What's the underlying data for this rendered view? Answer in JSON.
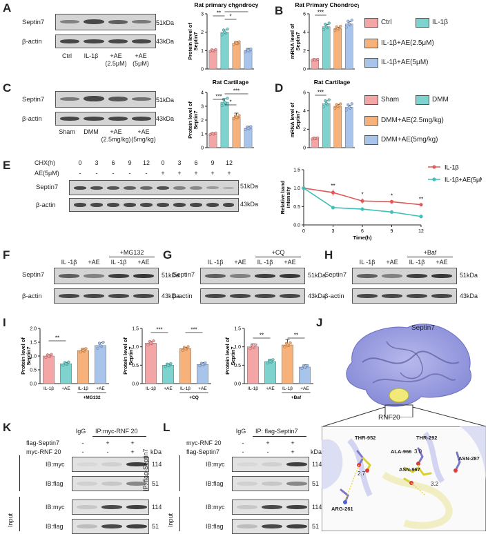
{
  "panels": {
    "A": {
      "letter": "A",
      "rows": [
        "Septin7",
        "β-actin"
      ],
      "kda": [
        "51kDa",
        "43kDa"
      ],
      "lanes": [
        "Ctrl",
        "IL-1β",
        "+AE (2.5μM)",
        "+AE (5μM)"
      ],
      "chart_title": "Rat primary chondrocytes",
      "ylabel": "Protein level of Septin7",
      "sig": [
        "**",
        "*",
        "**"
      ]
    },
    "B": {
      "letter": "B",
      "chart_title": "Rat Primary Chondrocytes",
      "ylabel": "mRNA level of Septin7",
      "sig": [
        "***"
      ],
      "legend": [
        "Ctrl",
        "IL-1β",
        "IL-1β+AE(2.5μM)",
        "IL-1β+AE(5μM)"
      ]
    },
    "C": {
      "letter": "C",
      "rows": [
        "Septin7",
        "β-actin"
      ],
      "kda": [
        "51kDa",
        "43kDa"
      ],
      "lanes": [
        "Sham",
        "DMM",
        "+AE (2.5mg/kg)",
        "+AE (5mg/kg)"
      ],
      "chart_title": "Rat Cartilage",
      "ylabel": "Protein level of Septin7",
      "sig": [
        "***",
        "*",
        "***"
      ]
    },
    "D": {
      "letter": "D",
      "chart_title": "Rat Cartilage",
      "ylabel": "mRNA level of Septin7",
      "sig": [
        "***"
      ],
      "legend": [
        "Sham",
        "DMM",
        "DMM+AE(2.5mg/kg)",
        "DMM+AE(5mg/kg)"
      ]
    },
    "E": {
      "letter": "E",
      "chx_label": "CHX(h)",
      "chx_values": [
        "0",
        "3",
        "6",
        "9",
        "12",
        "0",
        "3",
        "6",
        "9",
        "12"
      ],
      "ae_label": "AE(5μM)",
      "ae_values": [
        "-",
        "-",
        "-",
        "-",
        "-",
        "+",
        "+",
        "+",
        "+",
        "+"
      ],
      "rows": [
        "Septin7",
        "β-actin"
      ],
      "kda": [
        "51kDa",
        "43kDa"
      ],
      "ylabel": "Relative band intensity",
      "xlabel": "Time(h)",
      "legend": [
        "IL-1β",
        "IL-1β+AE(5μM)"
      ],
      "sig": [
        "**",
        "*",
        "*",
        "**"
      ]
    },
    "F": {
      "letter": "F",
      "header_top": "+MG132",
      "lanes": [
        "IL -1β",
        "+AE",
        "IL -1β",
        "+AE"
      ],
      "rows": [
        "Septin7",
        "β-actin"
      ],
      "kda": [
        "51kDa",
        "43kDa"
      ]
    },
    "G": {
      "letter": "G",
      "header_top": "+CQ",
      "lanes": [
        "IL -1β",
        "+AE",
        "IL -1β",
        "+AE"
      ],
      "rows": [
        "Septin7",
        "β-actin"
      ],
      "kda": [
        "51kDa",
        "43kDa"
      ]
    },
    "H": {
      "letter": "H",
      "header_top": "+Baf",
      "lanes": [
        "IL -1β",
        "+AE",
        "IL -1β",
        "+AE"
      ],
      "rows": [
        "Septin7",
        "β-actin"
      ],
      "kda": [
        "51kDa",
        "43kDa"
      ]
    },
    "I": {
      "letter": "I",
      "ylabel": "Protein level of Septin7",
      "charts": [
        {
          "lanes": [
            "IL-1β",
            "+AE",
            "IL-1β",
            "+AE"
          ],
          "group": "+MG132",
          "sig": [
            "**"
          ]
        },
        {
          "lanes": [
            "IL-1β",
            "+AE",
            "IL-1β",
            "+AE"
          ],
          "group": "+CQ",
          "sig": [
            "***",
            "***"
          ]
        },
        {
          "lanes": [
            "IL-1β",
            "+AE",
            "IL-1β",
            "+AE"
          ],
          "group": "+Baf",
          "sig": [
            "**",
            "**"
          ]
        }
      ]
    },
    "J": {
      "letter": "J",
      "protein_top": "Septin7",
      "protein_bottom": "RNF20",
      "residues": [
        "THR-952",
        "THR-292",
        "ALA-966",
        "ASN-287",
        "ASN-967",
        "ARG-261"
      ],
      "distances": [
        "2.7",
        "3.0",
        "3.2"
      ]
    },
    "K": {
      "letter": "K",
      "side_ip": "IP: myc-RNF 20",
      "side_input": "Input",
      "igg": "IgG",
      "ip_header": "IP:myc-RNF 20",
      "row1_label": "flag-Septin7",
      "row1_values": [
        "-",
        "+",
        "+"
      ],
      "row2_label": "myc-RNF 20",
      "row2_values": [
        "-",
        "-",
        "+"
      ],
      "kda_header": "kDa",
      "blots": [
        "IB:myc",
        "IB:flag",
        "IB:myc",
        "IB:flag"
      ],
      "kda": [
        "114",
        "51",
        "114",
        "51"
      ]
    },
    "L": {
      "letter": "L",
      "side_ip": "IP: flag-Septin7",
      "side_input": "Input",
      "igg": "IgG",
      "ip_header": "IP:  flag-Septin7",
      "row1_label": "myc-RNF 20",
      "row1_values": [
        "-",
        "+",
        "+"
      ],
      "row2_label": "flag-Septin7",
      "row2_values": [
        "-",
        "-",
        "+"
      ],
      "kda_header": "kDa",
      "blots": [
        "IB:myc",
        "IB:flag",
        "IB:myc",
        "IB:flag"
      ],
      "kda": [
        "114",
        "51",
        "114",
        "51"
      ]
    }
  },
  "colors": {
    "ctrl": "#f4a6a6",
    "il1b": "#7fd3cf",
    "ae25": "#f6b27a",
    "ae5": "#a9c4ea",
    "line_il1b": "#e05a5a",
    "line_ae": "#3cc0b8",
    "purple_protein": "#9b9fe0",
    "yellow_protein": "#f1ea7a"
  },
  "chart_data": [
    {
      "type": "bar",
      "panel": "A",
      "title": "Rat primary chondrocytes",
      "categories": [
        "Ctrl",
        "IL-1β",
        "IL-1β+AE(2.5μM)",
        "IL-1β+AE(5μM)"
      ],
      "values": [
        1.0,
        2.0,
        1.4,
        1.0
      ],
      "errors": [
        0.05,
        0.12,
        0.08,
        0.12
      ],
      "ylabel": "Protein level of Septin7",
      "ylim": [
        0,
        3
      ],
      "yticks": [
        "0",
        "1",
        "2",
        "3"
      ]
    },
    {
      "type": "bar",
      "panel": "B",
      "title": "Rat Primary Chondrocytes",
      "categories": [
        "Ctrl",
        "IL-1β",
        "IL-1β+AE(2.5μM)",
        "IL-1β+AE(5μM)"
      ],
      "values": [
        1.0,
        4.6,
        4.4,
        4.9
      ],
      "errors": [
        0.1,
        0.25,
        0.15,
        0.25
      ],
      "ylabel": "mRNA level of Septin7",
      "ylim": [
        0,
        6
      ],
      "yticks": [
        "0",
        "2",
        "4",
        "6"
      ]
    },
    {
      "type": "bar",
      "panel": "C",
      "title": "Rat Cartilage",
      "categories": [
        "Sham",
        "DMM",
        "DMM+AE(2.5mg/kg)",
        "DMM+AE(5mg/kg)"
      ],
      "values": [
        1.0,
        3.3,
        2.2,
        1.4
      ],
      "errors": [
        0.08,
        0.25,
        0.3,
        0.15
      ],
      "ylabel": "Protein level of Septin7",
      "ylim": [
        0,
        4
      ],
      "yticks": [
        "0",
        "1",
        "2",
        "3",
        "4"
      ]
    },
    {
      "type": "bar",
      "panel": "D",
      "title": "Rat Cartilage",
      "categories": [
        "Sham",
        "DMM",
        "DMM+AE(2.5mg/kg)",
        "DMM+AE(5mg/kg)"
      ],
      "values": [
        1.0,
        4.8,
        4.5,
        4.4
      ],
      "errors": [
        0.12,
        0.3,
        0.2,
        0.2
      ],
      "ylabel": "mRNA level of Septin7",
      "ylim": [
        0,
        6
      ],
      "yticks": [
        "0",
        "2",
        "4",
        "6"
      ]
    },
    {
      "type": "line",
      "panel": "E",
      "x": [
        0,
        3,
        6,
        9,
        12
      ],
      "series": [
        {
          "name": "IL-1β",
          "values": [
            1.0,
            0.88,
            0.65,
            0.63,
            0.55
          ],
          "errors": [
            0.04,
            0.08,
            0.07,
            0.05,
            0.04
          ]
        },
        {
          "name": "IL-1β+AE(5μM)",
          "values": [
            1.0,
            0.47,
            0.43,
            0.35,
            0.23
          ],
          "errors": [
            0.04,
            0.03,
            0.05,
            0.03,
            0.04
          ]
        }
      ],
      "xlabel": "Time(h)",
      "ylabel": "Relative band intensity",
      "xlim": [
        0,
        12
      ],
      "ylim": [
        0,
        1.5
      ],
      "xticks": [
        "0",
        "3",
        "6",
        "9",
        "12"
      ],
      "yticks": [
        "0.0",
        "0.5",
        "1.0",
        "1.5"
      ]
    },
    {
      "type": "bar",
      "panel": "I1",
      "categories": [
        "IL-1β",
        "+AE",
        "IL-1β",
        "+AE"
      ],
      "group": "+MG132",
      "values": [
        1.0,
        0.72,
        1.2,
        1.38
      ],
      "errors": [
        0.05,
        0.05,
        0.08,
        0.1
      ],
      "ylabel": "Protein level of Septin7",
      "ylim": [
        0,
        2.0
      ],
      "yticks": [
        "0.0",
        "0.5",
        "1.0",
        "1.5",
        "2.0"
      ]
    },
    {
      "type": "bar",
      "panel": "I2",
      "categories": [
        "IL-1β",
        "+AE",
        "IL-1β",
        "+AE"
      ],
      "group": "+CQ",
      "values": [
        1.1,
        0.5,
        0.95,
        0.52
      ],
      "errors": [
        0.05,
        0.04,
        0.03,
        0.05
      ],
      "ylabel": "Protein level of Septin7",
      "ylim": [
        0,
        1.5
      ],
      "yticks": [
        "0.0",
        "0.5",
        "1.0",
        "1.5"
      ]
    },
    {
      "type": "bar",
      "panel": "I3",
      "categories": [
        "IL-1β",
        "+AE",
        "IL-1β",
        "+AE"
      ],
      "group": "+Baf",
      "values": [
        1.0,
        0.6,
        1.05,
        0.45
      ],
      "errors": [
        0.08,
        0.06,
        0.15,
        0.06
      ],
      "ylabel": "Protein level of Septin7",
      "ylim": [
        0,
        1.5
      ],
      "yticks": [
        "0.0",
        "0.5",
        "1.0",
        "1.5"
      ]
    }
  ]
}
